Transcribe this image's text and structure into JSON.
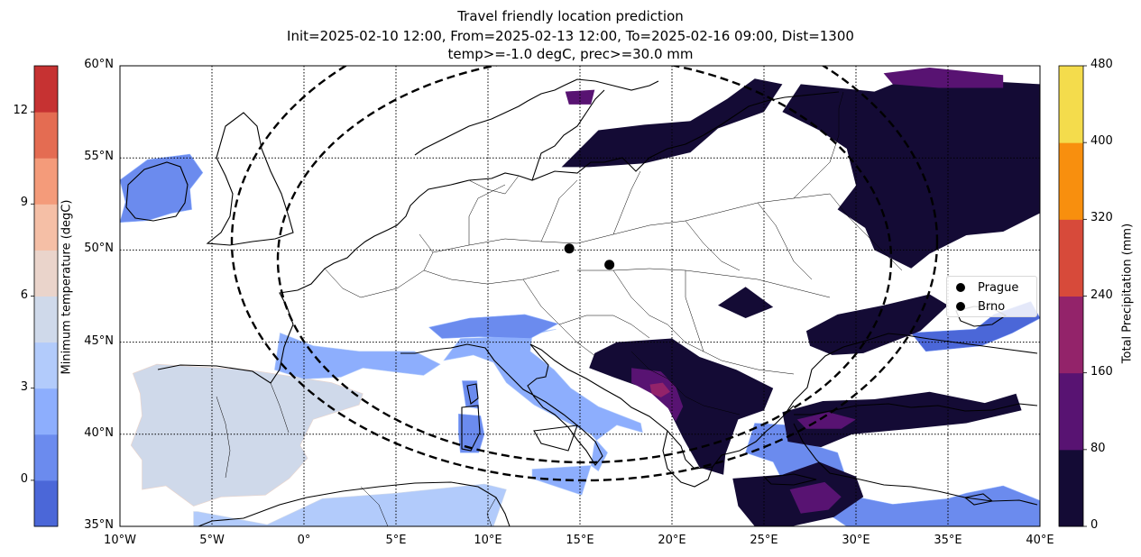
{
  "title": {
    "line1": "Travel friendly location prediction",
    "line2": "Init=2025-02-10 12:00, From=2025-02-13 12:00, To=2025-02-16 09:00, Dist=1300",
    "line3": "temp>=-1.0 degC, prec>=30.0 mm"
  },
  "map": {
    "lon_range": [
      -10,
      40
    ],
    "lat_range": [
      35,
      60
    ],
    "lon_ticks": [
      "10°W",
      "5°W",
      "0°",
      "5°E",
      "10°E",
      "15°E",
      "20°E",
      "25°E",
      "30°E",
      "35°E",
      "40°E"
    ],
    "lat_ticks": [
      "35°N",
      "40°N",
      "45°N",
      "50°N",
      "55°N",
      "60°N"
    ],
    "gridlines": "dotted",
    "distance_circle_center": [
      15.2,
      50.1
    ],
    "distance_km": 1300
  },
  "cities": [
    {
      "name": "Prague",
      "lon": 14.42,
      "lat": 50.08
    },
    {
      "name": "Brno",
      "lon": 16.6,
      "lat": 49.2
    }
  ],
  "legend": {
    "placement": "center-right",
    "entries": [
      "Prague",
      "Brno"
    ]
  },
  "temperature_colorbar": {
    "label": "Minimum temperature (degC)",
    "ticks": [
      "0",
      "3",
      "6",
      "9",
      "12"
    ],
    "range": [
      -1.5,
      13.5
    ],
    "colors": [
      "#4b67d8",
      "#6b8bee",
      "#8daefd",
      "#b2cbfb",
      "#cfd9ea",
      "#ead4cb",
      "#f5bfa6",
      "#f49b7a",
      "#e46c52",
      "#c63232"
    ]
  },
  "precipitation_colorbar": {
    "label": "Total Precipitation (mm)",
    "ticks": [
      "0",
      "80",
      "160",
      "240",
      "320",
      "400",
      "480"
    ],
    "range": [
      0,
      480
    ],
    "colors": [
      "#140b35",
      "#581372",
      "#93236a",
      "#d74a3a",
      "#f88f0e",
      "#f4dc4c"
    ]
  },
  "temperature_regions": [
    {
      "name": "Iberia",
      "level": 4,
      "pts": [
        [
          -9.3,
          43.3
        ],
        [
          -8,
          43.8
        ],
        [
          -3,
          43.5
        ],
        [
          1.5,
          42.8
        ],
        [
          3.2,
          42.2
        ],
        [
          3,
          41.6
        ],
        [
          0.5,
          40.8
        ],
        [
          -0.2,
          39.4
        ],
        [
          0.2,
          38.7
        ],
        [
          -0.8,
          37.6
        ],
        [
          -2.1,
          36.7
        ],
        [
          -4.5,
          36.6
        ],
        [
          -6,
          36.1
        ],
        [
          -7.5,
          37.2
        ],
        [
          -8.8,
          37
        ],
        [
          -8.8,
          38.6
        ],
        [
          -9.4,
          39.4
        ],
        [
          -8.8,
          41
        ],
        [
          -8.9,
          42.2
        ]
      ]
    },
    {
      "name": "N-Africa",
      "level": 3,
      "pts": [
        [
          -5.8,
          35.8
        ],
        [
          -2,
          35.1
        ],
        [
          1,
          36.5
        ],
        [
          5,
          36.8
        ],
        [
          9.8,
          37.3
        ],
        [
          11,
          37
        ],
        [
          10.3,
          35
        ],
        [
          -6,
          35
        ],
        [
          -6,
          35.8
        ]
      ]
    },
    {
      "name": "Ireland",
      "level": 1,
      "pts": [
        [
          -10,
          51.5
        ],
        [
          -9.7,
          52.6
        ],
        [
          -10,
          53.8
        ],
        [
          -8.5,
          54.9
        ],
        [
          -6.2,
          55.2
        ],
        [
          -5.5,
          54.2
        ],
        [
          -6.2,
          53.3
        ],
        [
          -6.1,
          52.2
        ],
        [
          -7.2,
          52
        ],
        [
          -8.5,
          51.6
        ]
      ]
    },
    {
      "name": "Italy",
      "level": 2,
      "pts": [
        [
          7.6,
          44
        ],
        [
          9.2,
          44.3
        ],
        [
          10.3,
          43.9
        ],
        [
          11,
          42.8
        ],
        [
          12.5,
          41.6
        ],
        [
          14,
          40.8
        ],
        [
          15.6,
          40
        ],
        [
          16.5,
          39
        ],
        [
          16,
          38
        ],
        [
          15.6,
          38.3
        ],
        [
          15.8,
          39.6
        ],
        [
          17,
          40.5
        ],
        [
          18.4,
          40.1
        ],
        [
          18.3,
          40.6
        ],
        [
          16,
          41.5
        ],
        [
          14.5,
          42.5
        ],
        [
          13.6,
          43.5
        ],
        [
          12.3,
          44.5
        ],
        [
          12.4,
          45.4
        ],
        [
          13.7,
          45.7
        ],
        [
          11,
          45.3
        ],
        [
          8.5,
          45.2
        ]
      ]
    },
    {
      "name": "Alps-S",
      "level": 1,
      "pts": [
        [
          6.8,
          45.8
        ],
        [
          9,
          46.3
        ],
        [
          12,
          46.5
        ],
        [
          13.8,
          46
        ],
        [
          12.3,
          45.2
        ],
        [
          9.5,
          45.3
        ],
        [
          7.5,
          45.2
        ]
      ]
    },
    {
      "name": "Sardinia",
      "level": 1,
      "pts": [
        [
          8.4,
          41.1
        ],
        [
          9.6,
          41
        ],
        [
          9.8,
          40
        ],
        [
          9.5,
          39
        ],
        [
          8.5,
          39
        ],
        [
          8.4,
          40
        ]
      ]
    },
    {
      "name": "Corsica",
      "level": 1,
      "pts": [
        [
          8.6,
          42.9
        ],
        [
          9.4,
          42.9
        ],
        [
          9.5,
          41.4
        ],
        [
          8.8,
          41.5
        ]
      ]
    },
    {
      "name": "Sicily",
      "level": 2,
      "pts": [
        [
          12.4,
          38.1
        ],
        [
          15.6,
          38.3
        ],
        [
          15.1,
          36.7
        ],
        [
          12.4,
          37.6
        ]
      ]
    },
    {
      "name": "Aegean",
      "level": 1,
      "pts": [
        [
          24.5,
          40.6
        ],
        [
          26.2,
          40.5
        ],
        [
          27,
          39.6
        ],
        [
          29,
          39
        ],
        [
          29.5,
          37.5
        ],
        [
          27.8,
          36.7
        ],
        [
          26,
          37.5
        ],
        [
          25.5,
          38.5
        ],
        [
          24,
          39
        ]
      ]
    },
    {
      "name": "Turkey-S",
      "level": 1,
      "pts": [
        [
          28,
          37.2
        ],
        [
          30,
          36.6
        ],
        [
          32,
          36.2
        ],
        [
          35,
          36.5
        ],
        [
          36,
          36.8
        ],
        [
          38,
          37.2
        ],
        [
          40,
          36.4
        ],
        [
          40,
          35
        ],
        [
          29.5,
          35
        ],
        [
          28,
          36
        ]
      ]
    },
    {
      "name": "BlackSea-N",
      "level": 0,
      "pts": [
        [
          33,
          45.5
        ],
        [
          36.5,
          45.7
        ],
        [
          37.5,
          46.5
        ],
        [
          39.5,
          47.2
        ],
        [
          40,
          46.3
        ],
        [
          38.5,
          45.5
        ],
        [
          36.8,
          44.8
        ],
        [
          33.8,
          44.5
        ]
      ]
    },
    {
      "name": "France-S",
      "level": 2,
      "pts": [
        [
          -1.3,
          45.5
        ],
        [
          -1.6,
          43.5
        ],
        [
          0,
          43
        ],
        [
          2,
          43.1
        ],
        [
          3.2,
          43.6
        ],
        [
          4.8,
          43.4
        ],
        [
          6.5,
          43.2
        ],
        [
          7.4,
          43.8
        ],
        [
          6,
          44.5
        ],
        [
          3,
          44.5
        ],
        [
          0.5,
          44.8
        ]
      ]
    }
  ],
  "precip_regions": [
    {
      "name": "East-Europe",
      "level": 0,
      "pts": [
        [
          26,
          57.5
        ],
        [
          27,
          59
        ],
        [
          31,
          58.6
        ],
        [
          33,
          59.4
        ],
        [
          40,
          59
        ],
        [
          40,
          52
        ],
        [
          38,
          51
        ],
        [
          36,
          50.8
        ],
        [
          34,
          49.8
        ],
        [
          33,
          49
        ],
        [
          31,
          50
        ],
        [
          30.5,
          51.2
        ],
        [
          29,
          52.2
        ],
        [
          30,
          53.5
        ],
        [
          29.5,
          55.5
        ],
        [
          28,
          56.5
        ]
      ]
    },
    {
      "name": "Baltic-N",
      "level": 0,
      "pts": [
        [
          14,
          54.5
        ],
        [
          16,
          56.5
        ],
        [
          18.5,
          56.8
        ],
        [
          21,
          57
        ],
        [
          23,
          58.2
        ],
        [
          24.5,
          59.3
        ],
        [
          26,
          59
        ],
        [
          25,
          57.5
        ],
        [
          22.5,
          56.6
        ],
        [
          21,
          55.3
        ],
        [
          18.5,
          54.7
        ],
        [
          15.5,
          54.5
        ]
      ]
    },
    {
      "name": "Baltic-NE",
      "level": 1,
      "pts": [
        [
          31.5,
          59.6
        ],
        [
          34,
          59.9
        ],
        [
          38,
          59.5
        ],
        [
          38,
          58.8
        ],
        [
          34.5,
          58.8
        ],
        [
          32,
          59
        ]
      ]
    },
    {
      "name": "Balkans",
      "level": 0,
      "pts": [
        [
          15.5,
          43.6
        ],
        [
          16.8,
          43.1
        ],
        [
          18.5,
          42.5
        ],
        [
          19.6,
          41.8
        ],
        [
          20.1,
          40.8
        ],
        [
          20.6,
          39.8
        ],
        [
          21.5,
          38.2
        ],
        [
          22.8,
          37.8
        ],
        [
          22.9,
          38.9
        ],
        [
          23.6,
          40.8
        ],
        [
          25,
          41.3
        ],
        [
          25.5,
          42.5
        ],
        [
          23.5,
          43.5
        ],
        [
          21.5,
          44.2
        ],
        [
          20,
          45.2
        ],
        [
          17,
          45
        ],
        [
          15.8,
          44.4
        ]
      ]
    },
    {
      "name": "Balkans-core",
      "level": 1,
      "pts": [
        [
          17.8,
          43.6
        ],
        [
          19.4,
          43.4
        ],
        [
          20.2,
          42.6
        ],
        [
          20.6,
          41.5
        ],
        [
          20.2,
          40.7
        ],
        [
          19.8,
          41.4
        ],
        [
          18.9,
          42.2
        ],
        [
          17.8,
          42.8
        ]
      ]
    },
    {
      "name": "Montenegro-max",
      "level": 2,
      "pts": [
        [
          18.8,
          42.7
        ],
        [
          19.5,
          42.8
        ],
        [
          19.9,
          42.3
        ],
        [
          19.4,
          42
        ],
        [
          18.9,
          42.2
        ]
      ]
    },
    {
      "name": "Crete-area",
      "level": 0,
      "pts": [
        [
          23.3,
          37.6
        ],
        [
          26,
          37.8
        ],
        [
          28,
          38.5
        ],
        [
          30,
          37.7
        ],
        [
          30.4,
          36.6
        ],
        [
          28.8,
          35.5
        ],
        [
          26.5,
          35
        ],
        [
          24.5,
          35
        ],
        [
          23.6,
          36.1
        ]
      ]
    },
    {
      "name": "Crete-core",
      "level": 1,
      "pts": [
        [
          26.4,
          37
        ],
        [
          28.3,
          37.4
        ],
        [
          29.2,
          36.6
        ],
        [
          28.5,
          35.9
        ],
        [
          27,
          35.7
        ]
      ]
    },
    {
      "name": "Turkey-NW",
      "level": 0,
      "pts": [
        [
          26,
          41.2
        ],
        [
          28.2,
          41.8
        ],
        [
          31,
          41.9
        ],
        [
          34,
          42.3
        ],
        [
          37,
          41.7
        ],
        [
          38.7,
          42.2
        ],
        [
          39,
          41.3
        ],
        [
          36,
          40.6
        ],
        [
          33,
          40.3
        ],
        [
          29.8,
          40
        ],
        [
          28.1,
          39.3
        ],
        [
          26.3,
          39.6
        ]
      ]
    },
    {
      "name": "Romania-E",
      "level": 0,
      "pts": [
        [
          27.3,
          45.6
        ],
        [
          29,
          46.5
        ],
        [
          31.5,
          47
        ],
        [
          34,
          47.6
        ],
        [
          35,
          47
        ],
        [
          33.5,
          45.6
        ],
        [
          30.4,
          44.4
        ],
        [
          28.7,
          44.3
        ],
        [
          27.5,
          44.8
        ]
      ]
    },
    {
      "name": "Marmara",
      "level": 1,
      "pts": [
        [
          26.8,
          40.8
        ],
        [
          28.5,
          41.2
        ],
        [
          30,
          40.8
        ],
        [
          29.2,
          40.3
        ],
        [
          27.3,
          40.3
        ]
      ]
    },
    {
      "name": "Ukraine-W",
      "level": 0,
      "pts": [
        [
          22.5,
          47
        ],
        [
          24,
          48
        ],
        [
          25.5,
          46.9
        ],
        [
          24,
          46.3
        ]
      ]
    },
    {
      "name": "Baltic-spot",
      "level": 1,
      "pts": [
        [
          14.2,
          58.6
        ],
        [
          15.8,
          58.7
        ],
        [
          15.6,
          57.9
        ],
        [
          14.4,
          57.9
        ]
      ]
    }
  ]
}
